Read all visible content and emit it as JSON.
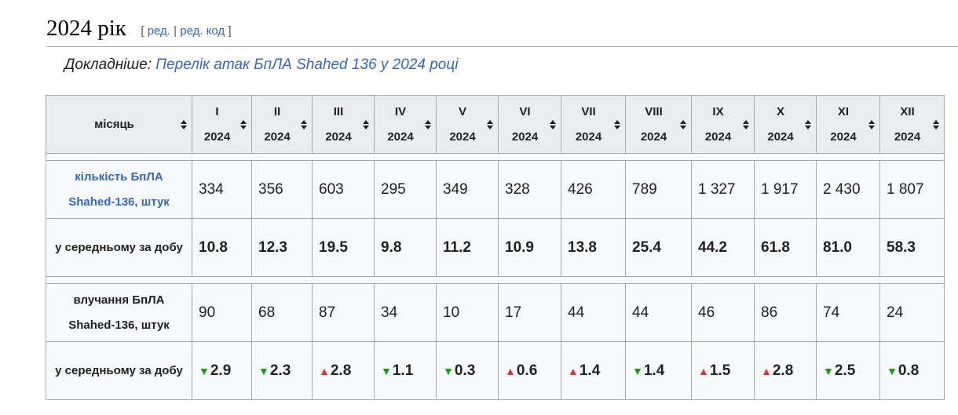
{
  "section": {
    "title": "2024 рік",
    "edit_open": "[",
    "edit_label": "ред.",
    "edit_sep": "|",
    "edit_code_label": "ред. код",
    "edit_close": "]"
  },
  "hatnote": {
    "prefix": "Докладніше:",
    "link": "Перелік атак БпЛА Shahed 136 у 2024 році"
  },
  "table": {
    "corner_header": "місяць",
    "months": [
      {
        "roman": "I",
        "year": "2024"
      },
      {
        "roman": "II",
        "year": "2024"
      },
      {
        "roman": "III",
        "year": "2024"
      },
      {
        "roman": "IV",
        "year": "2024"
      },
      {
        "roman": "V",
        "year": "2024"
      },
      {
        "roman": "VI",
        "year": "2024"
      },
      {
        "roman": "VII",
        "year": "2024"
      },
      {
        "roman": "VIII",
        "year": "2024"
      },
      {
        "roman": "IX",
        "year": "2024"
      },
      {
        "roman": "X",
        "year": "2024"
      },
      {
        "roman": "XI",
        "year": "2024"
      },
      {
        "roman": "XII",
        "year": "2024"
      }
    ],
    "count_label": "кількість БпЛА Shahed-136, штук",
    "counts": [
      "334",
      "356",
      "603",
      "295",
      "349",
      "328",
      "426",
      "789",
      "1 327",
      "1 917",
      "2 430",
      "1 807"
    ],
    "avg_label": "у середньому за добу",
    "averages": [
      "10.8",
      "12.3",
      "19.5",
      "9.8",
      "11.2",
      "10.9",
      "13.8",
      "25.4",
      "44.2",
      "61.8",
      "81.0",
      "58.3"
    ],
    "hits_label": "влучання БпЛА Shahed-136, штук",
    "hits": [
      "90",
      "68",
      "87",
      "34",
      "10",
      "17",
      "44",
      "44",
      "46",
      "86",
      "74",
      "24"
    ],
    "hits_avg_label": "у середньому за добу",
    "hits_avg": [
      {
        "dir": "down",
        "value": "2.9"
      },
      {
        "dir": "down",
        "value": "2.3"
      },
      {
        "dir": "up",
        "value": "2.8"
      },
      {
        "dir": "down",
        "value": "1.1"
      },
      {
        "dir": "down",
        "value": "0.3"
      },
      {
        "dir": "up",
        "value": "0.6"
      },
      {
        "dir": "up",
        "value": "1.4"
      },
      {
        "dir": "down",
        "value": "1.4"
      },
      {
        "dir": "up",
        "value": "1.5"
      },
      {
        "dir": "up",
        "value": "2.8"
      },
      {
        "dir": "down",
        "value": "2.5"
      },
      {
        "dir": "down",
        "value": "0.8"
      }
    ],
    "arrows": {
      "up": "▲",
      "down": "▼"
    },
    "colors": {
      "up": "#dd3333",
      "down": "#14a30f",
      "link": "#3366cc"
    }
  }
}
